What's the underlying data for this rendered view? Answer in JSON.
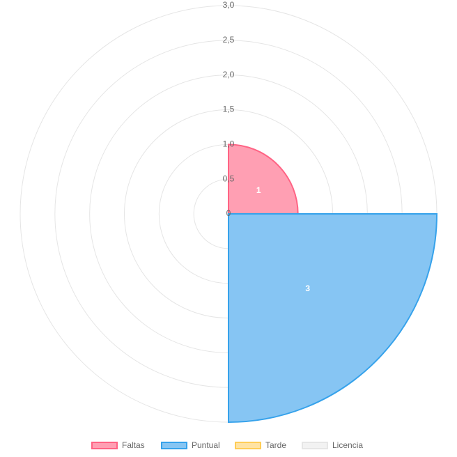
{
  "chart_data": {
    "type": "polarArea",
    "categories": [
      "Faltas",
      "Puntual",
      "Tarde",
      "Licencia"
    ],
    "values": [
      1,
      3,
      0,
      0
    ],
    "data_labels": [
      "1",
      "3",
      "",
      ""
    ],
    "rlim": [
      0,
      3
    ],
    "ticks": [
      "0",
      "0,5",
      "1,0",
      "1,5",
      "2,0",
      "2,5",
      "3,0"
    ],
    "grid": true,
    "legend_position": "bottom",
    "colors": {
      "fill": [
        "#ff9fb3",
        "#86c5f3",
        "#ffe3a3",
        "#f2f2f2"
      ],
      "border": [
        "#ff6384",
        "#36a2eb",
        "#ffcd56",
        "#e6e6e6"
      ],
      "grid": "#e5e5e5"
    }
  }
}
